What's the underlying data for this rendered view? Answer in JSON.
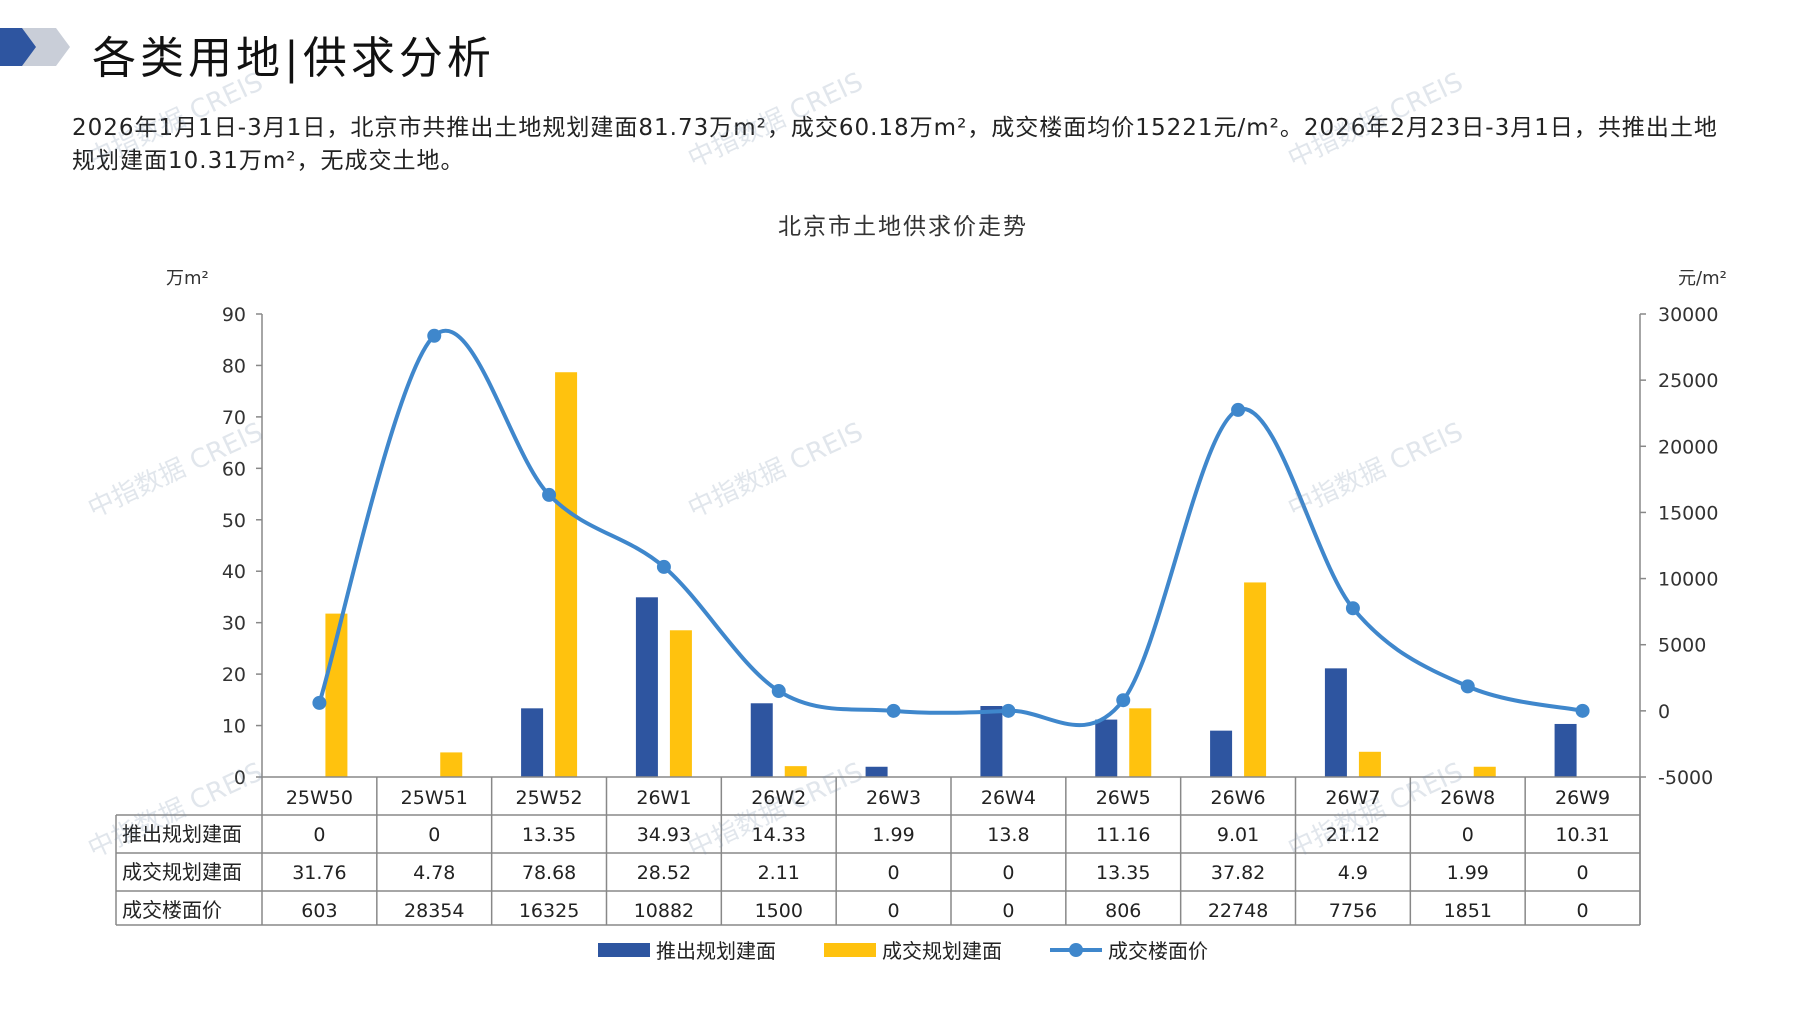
{
  "header": {
    "title": "各类用地|供求分析",
    "summary": "2026年1月1日-3月1日，北京市共推出土地规划建面81.73万m²，成交60.18万m²，成交楼面均价15221元/m²。2026年2月23日-3月1日，共推出土地规划建面10.31万m²，无成交土地。"
  },
  "watermark": "中指数据 CREIS",
  "colors": {
    "supply": "#2E55A0",
    "deal": "#FFC20E",
    "price": "#3F87CC",
    "axis": "#888888"
  },
  "chart_data": {
    "type": "bar",
    "title": "北京市土地供求价走势",
    "left_unit": "万m²",
    "right_unit": "元/m²",
    "categories": [
      "25W50",
      "25W51",
      "25W52",
      "26W1",
      "26W2",
      "26W3",
      "26W4",
      "26W5",
      "26W6",
      "26W7",
      "26W8",
      "26W9"
    ],
    "left_axis": {
      "min": 0,
      "max": 90,
      "step": 10,
      "ticks": [
        "0",
        "10",
        "20",
        "30",
        "40",
        "50",
        "60",
        "70",
        "80",
        "90"
      ]
    },
    "right_axis": {
      "min": -5000,
      "max": 30000,
      "step": 5000,
      "ticks": [
        "-5000",
        "0",
        "5000",
        "10000",
        "15000",
        "20000",
        "25000",
        "30000"
      ]
    },
    "series": [
      {
        "name": "推出规划建面",
        "kind": "bar",
        "axis": "left",
        "values": [
          0,
          0,
          13.35,
          34.93,
          14.33,
          1.99,
          13.8,
          11.16,
          9.01,
          21.12,
          0,
          10.31
        ],
        "labels": [
          "0",
          "0",
          "13.35",
          "34.93",
          "14.33",
          "1.99",
          "13.8",
          "11.16",
          "9.01",
          "21.12",
          "0",
          "10.31"
        ]
      },
      {
        "name": "成交规划建面",
        "kind": "bar",
        "axis": "left",
        "values": [
          31.76,
          4.78,
          78.68,
          28.52,
          2.11,
          0,
          0,
          13.35,
          37.82,
          4.9,
          1.99,
          0
        ],
        "labels": [
          "31.76",
          "4.78",
          "78.68",
          "28.52",
          "2.11",
          "0",
          "0",
          "13.35",
          "37.82",
          "4.9",
          "1.99",
          "0"
        ]
      },
      {
        "name": "成交楼面价",
        "kind": "line",
        "axis": "right",
        "values": [
          603,
          28354,
          16325,
          10882,
          1500,
          0,
          0,
          806,
          22748,
          7756,
          1851,
          0
        ],
        "labels": [
          "603",
          "28354",
          "16325",
          "10882",
          "1500",
          "0",
          "0",
          "806",
          "22748",
          "7756",
          "1851",
          "0"
        ]
      }
    ],
    "legend_position": "bottom"
  }
}
